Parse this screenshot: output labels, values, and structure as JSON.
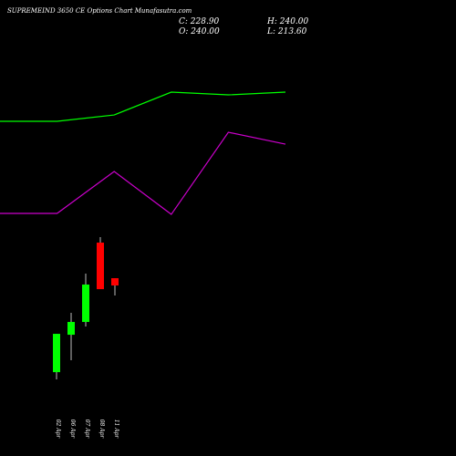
{
  "chart_data": [
    {
      "type": "candlestick",
      "title": "SUPREMEIND 3650  CE Options  Chart Munafasutra.com",
      "header": {
        "close": "C: 228.90",
        "high": "H: 240.00",
        "open": "O: 240.00",
        "low": "L: 213.60"
      },
      "categories": [
        "02 Apr",
        "06 Apr",
        "07 Apr",
        "08 Apr",
        "11 Apr"
      ],
      "open": [
        96.8,
        153.8,
        173.3,
        294.2,
        240.0
      ],
      "high": [
        155.2,
        187.2,
        247.0,
        302.6,
        240.0
      ],
      "low": [
        85.7,
        114.9,
        166.3,
        223.3,
        213.6
      ],
      "close": [
        155.2,
        173.3,
        230.3,
        223.3,
        228.9
      ],
      "up_color": "#00ff00",
      "down_color": "#ff0000",
      "ylim": [
        -31,
        664
      ]
    },
    {
      "type": "line",
      "x": [
        0,
        1,
        2,
        3,
        4,
        5
      ],
      "xlim": [
        0,
        5
      ],
      "series": [
        {
          "color": "#00ff00",
          "values": [
            479.1,
            479.1,
            488.8,
            523.6,
            519.4,
            523.6
          ]
        },
        {
          "color": "#cc00cc",
          "values": [
            338.7,
            338.7,
            402.6,
            337.3,
            462.4,
            444.3
          ]
        }
      ],
      "ylim": [
        -31,
        664
      ]
    }
  ]
}
